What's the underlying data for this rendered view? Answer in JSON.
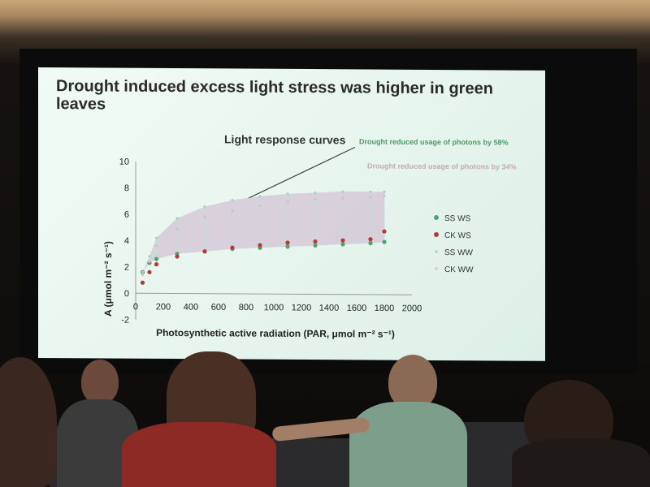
{
  "slide": {
    "title": "Drought induced excess light stress was higher in green leaves"
  },
  "chart_data": {
    "type": "scatter",
    "title": "Light response curves",
    "xlabel": "Photosynthetic active radiation (PAR, μmol m⁻² s⁻¹)",
    "ylabel": "A (μmol m⁻² s⁻¹)",
    "xlim": [
      0,
      2000
    ],
    "ylim": [
      -2,
      10
    ],
    "x_ticks": [
      "0",
      "200",
      "400",
      "600",
      "800",
      "1000",
      "1200",
      "1400",
      "1600",
      "1800",
      "2000"
    ],
    "y_ticks": [
      "-2",
      "0",
      "2",
      "4",
      "6",
      "8",
      "10"
    ],
    "grid": false,
    "legend_position": "right",
    "annotations": [
      {
        "text": "Drought reduced usage of photons by 58%",
        "color": "#4f9a62"
      },
      {
        "text": "Drought reduced usage of photons by 34%",
        "color": "#c9a9b4"
      }
    ],
    "series": [
      {
        "name": "SS WS",
        "color": "#4fa26f",
        "x": [
          50,
          100,
          150,
          300,
          500,
          700,
          900,
          1100,
          1300,
          1500,
          1700,
          1800
        ],
        "y": [
          1.6,
          2.3,
          2.6,
          3.0,
          3.2,
          3.4,
          3.5,
          3.6,
          3.7,
          3.8,
          3.9,
          4.0
        ]
      },
      {
        "name": "CK WS",
        "color": "#b23a3a",
        "x": [
          50,
          100,
          150,
          300,
          500,
          700,
          900,
          1100,
          1300,
          1500,
          1700,
          1800
        ],
        "y": [
          0.8,
          1.6,
          2.2,
          2.8,
          3.2,
          3.5,
          3.7,
          3.9,
          4.0,
          4.1,
          4.2,
          4.8
        ]
      },
      {
        "name": "SS WW",
        "color": "#9fd7c0",
        "x": [
          50,
          100,
          150,
          300,
          500,
          700,
          900,
          1100,
          1300,
          1500,
          1700,
          1800
        ],
        "y": [
          1.6,
          2.8,
          4.2,
          5.7,
          6.6,
          7.1,
          7.4,
          7.6,
          7.7,
          7.8,
          7.8,
          7.8
        ]
      },
      {
        "name": "CK WW",
        "color": "#d8bcc6",
        "x": [
          50,
          100,
          150,
          300,
          500,
          700,
          900,
          1100,
          1300,
          1500,
          1700,
          1800
        ],
        "y": [
          1.4,
          2.4,
          3.6,
          4.9,
          5.8,
          6.3,
          6.7,
          7.0,
          7.2,
          7.3,
          7.4,
          7.5
        ]
      }
    ]
  }
}
